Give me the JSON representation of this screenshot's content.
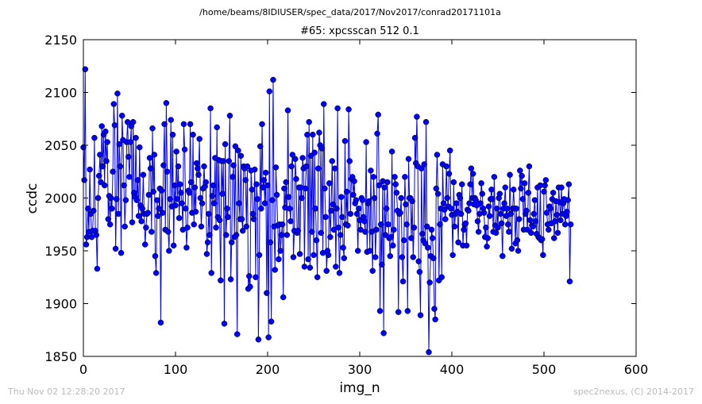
{
  "chart_data": {
    "type": "line",
    "suptitle": "/home/beams/8IDIUSER/spec_data/2017/Nov2017/conrad20171101a",
    "title": "#65: xpcsscan 512 0.1",
    "xlabel": "img_n",
    "ylabel": "ccdc",
    "xlim": [
      0,
      600
    ],
    "ylim": [
      1850,
      2150
    ],
    "xticks": [
      0,
      100,
      200,
      300,
      400,
      500,
      600
    ],
    "yticks": [
      1850,
      1900,
      1950,
      2000,
      2050,
      2100,
      2150
    ],
    "grid": false,
    "legend": "none",
    "series_color": "#0000ff",
    "marker": "circle",
    "series": [
      {
        "y": [
          2048,
          2017,
          2122,
          1956,
          1963,
          1990,
          1968,
          2027,
          1985,
          1963,
          1969,
          1988,
          2057,
          1969,
          1965,
          1933,
          2000,
          2021,
          2041,
          2015,
          2068,
          2030,
          2060,
          2012,
          2063,
          2035,
          2053,
          1980,
          2002,
          1975,
          2000,
          1990,
          2025,
          2089,
          2069,
          1952,
          1999,
          2099,
          1985,
          2051,
          2030,
          1948,
          2078,
          2055,
          2012,
          1973,
          1998,
          2053,
          2072,
          2039,
          2020,
          2053,
          2068,
          1977,
          2072,
          2005,
          2001,
          2057,
          1998,
          2017,
          1983,
          2048,
          1993,
          1978,
          1990,
          2022,
          1985,
          1956,
          1972,
          1985,
          1986,
          2003,
          2038,
          2028,
          1968,
          2066,
          2006,
          2041,
          1945,
          1929,
          1998,
          1983,
          1990,
          2009,
          1882,
          2007,
          1986,
          2031,
          2070,
          1970,
          2090,
          2025,
          1968,
          1950,
          1999,
          2074,
          1992,
          2060,
          1955,
          2012,
          1993,
          2044,
          1999,
          2030,
          1981,
          2013,
          2005,
          1995,
          1970,
          2070,
          2046,
          1990,
          1953,
          1972,
          2007,
          2005,
          2070,
          2015,
          1986,
          2060,
          1975,
          2010,
          1987,
          2033,
          2028,
          2022,
          2056,
          2000,
          1973,
          1995,
          2009,
          2030,
          2011,
          2015,
          1947,
          1958,
          1985,
          1965,
          2085,
          1929,
          2002,
          2012,
          1995,
          2038,
          1972,
          2067,
          1982,
          2036,
          1979,
          1922,
          2035,
          2004,
          2035,
          1881,
          2051,
          1965,
          1990,
          1982,
          2035,
          2078,
          1923,
          1958,
          2020,
          2031,
          1963,
          2049,
          1965,
          1871,
          2045,
          1995,
          1980,
          2040,
          1980,
          1969,
          2030,
          2028,
          2017,
          1973,
          2030,
          1914,
          1926,
          1916,
          2026,
          2008,
          1985,
          1980,
          2027,
          1925,
          2013,
          1999,
          1866,
          1946,
          2049,
          1990,
          2070,
          2010,
          2017,
          1995,
          2024,
          1910,
          2012,
          1868,
          2101,
          1958,
          1883,
          1998,
          2112,
          1973,
          1932,
          2029,
          2003,
          1974,
          1942,
          1975,
          1950,
          1965,
          1975,
          1906,
          2009,
          1991,
          2015,
          1965,
          2083,
          2001,
          1990,
          1978,
          2030,
          2041,
          1944,
          1969,
          2037,
          2018,
          1967,
          1969,
          2010,
          1947,
          2010,
          2000,
          2038,
          2028,
          1935,
          2009,
          2030,
          2060,
          1942,
          2072,
          1934,
          2040,
          1968,
          2060,
          1946,
          2043,
          1990,
          1960,
          1925,
          2028,
          2062,
          2050,
          1967,
          2047,
          1948,
          2089,
          2009,
          1982,
          1931,
          1950,
          1946,
          2014,
          1963,
          1988,
          2035,
          1994,
          1970,
          2028,
          1935,
          1990,
          2085,
          1972,
          1929,
          1965,
          2001,
          1982,
          1953,
          1943,
          2054,
          1975,
          2006,
          1974,
          2084,
          2035,
          1985,
          2018,
          2020,
          2003,
          2016,
          1995,
          1998,
          1985,
          1950,
          1990,
          1979,
          1970,
          2000,
          1998,
          1982,
          1978,
          1968,
          2053,
          1949,
          1995,
          1997,
          1950,
          2026,
          1968,
          1931,
          2020,
          2000,
          1944,
          1970,
          2061,
          2079,
          2012,
          1893,
          1975,
          1937,
          2016,
          1872,
          2010,
          1965,
          1990,
          2015,
          1975,
          1962,
          1945,
          1963,
          2044,
          1955,
          1970,
          2020,
          2013,
          2005,
          1988,
          1892,
          1985,
          1986,
          2000,
          1944,
          1921,
          1960,
          2020,
          1994,
          1975,
          1893,
          2037,
          2000,
          2000,
          1962,
          1997,
          1944,
          1972,
          2057,
          2033,
          2077,
          2030,
          1940,
          1930,
          1889,
          2028,
          1966,
          1960,
          2032,
          1957,
          2072,
          1973,
          1953,
          1854,
          1920,
          1945,
          1970,
          1962,
          1943,
          1895,
          1885,
          2009,
          2041,
          2004,
          1922,
          1975,
          1990,
          1925,
          2032,
          1995,
          1989,
          1980,
          2030,
          2000,
          1992,
          2023,
          2045,
          1990,
          1984,
          1946,
          2015,
          1973,
          1985,
          1995,
          1987,
          1958,
          2003,
          2000,
          1985,
          2013,
          1955,
          1970,
          1975,
          1976,
          1955,
          1989,
          1988,
          1995,
          2013,
          2028,
          2000,
          2023,
          1994,
          2000,
          1998,
          1993,
          1978,
          1968,
          1985,
          1995,
          2014,
          2004,
          1990,
          1986,
          1963,
          1972,
          1954,
          1962,
          1992,
          1983,
          1999,
          2008,
          1999,
          1968,
          2020,
          1974,
          1967,
          1990,
          1972,
          2000,
          2004,
          1985,
          1976,
          1945,
          1990,
          1995,
          2010,
          1983,
          1990,
          1975,
          1968,
          2022,
          1985,
          1952,
          1990,
          2008,
          1990,
          1957,
          1990,
          1960,
          1950,
          1980,
          2026,
          2009,
          2021,
          1999,
          1970,
          2014,
          1985,
          1988,
          1970,
          2005,
          2030,
          1979,
          1967,
          1974,
          1973,
          1985,
          1998,
          1978,
          1966,
          2010,
          1963,
          1962,
          2012,
          1960,
          1961,
          1946,
          2006,
          2012,
          2017,
          1986,
          1975,
          1970,
          1992,
          1990,
          1976,
          1999,
          2005,
          1962,
          1978,
          1997,
          1984,
          1967,
          2010,
          1996,
          1979,
          2010,
          1985,
          1995,
          1999,
          1975,
          1983,
          1987,
          1998,
          2013,
          1921,
          1975
        ]
      }
    ]
  },
  "footer": {
    "timestamp": "Thu Nov 02 12:28:20 2017",
    "credit": "spec2nexus, (C) 2014-2017"
  }
}
